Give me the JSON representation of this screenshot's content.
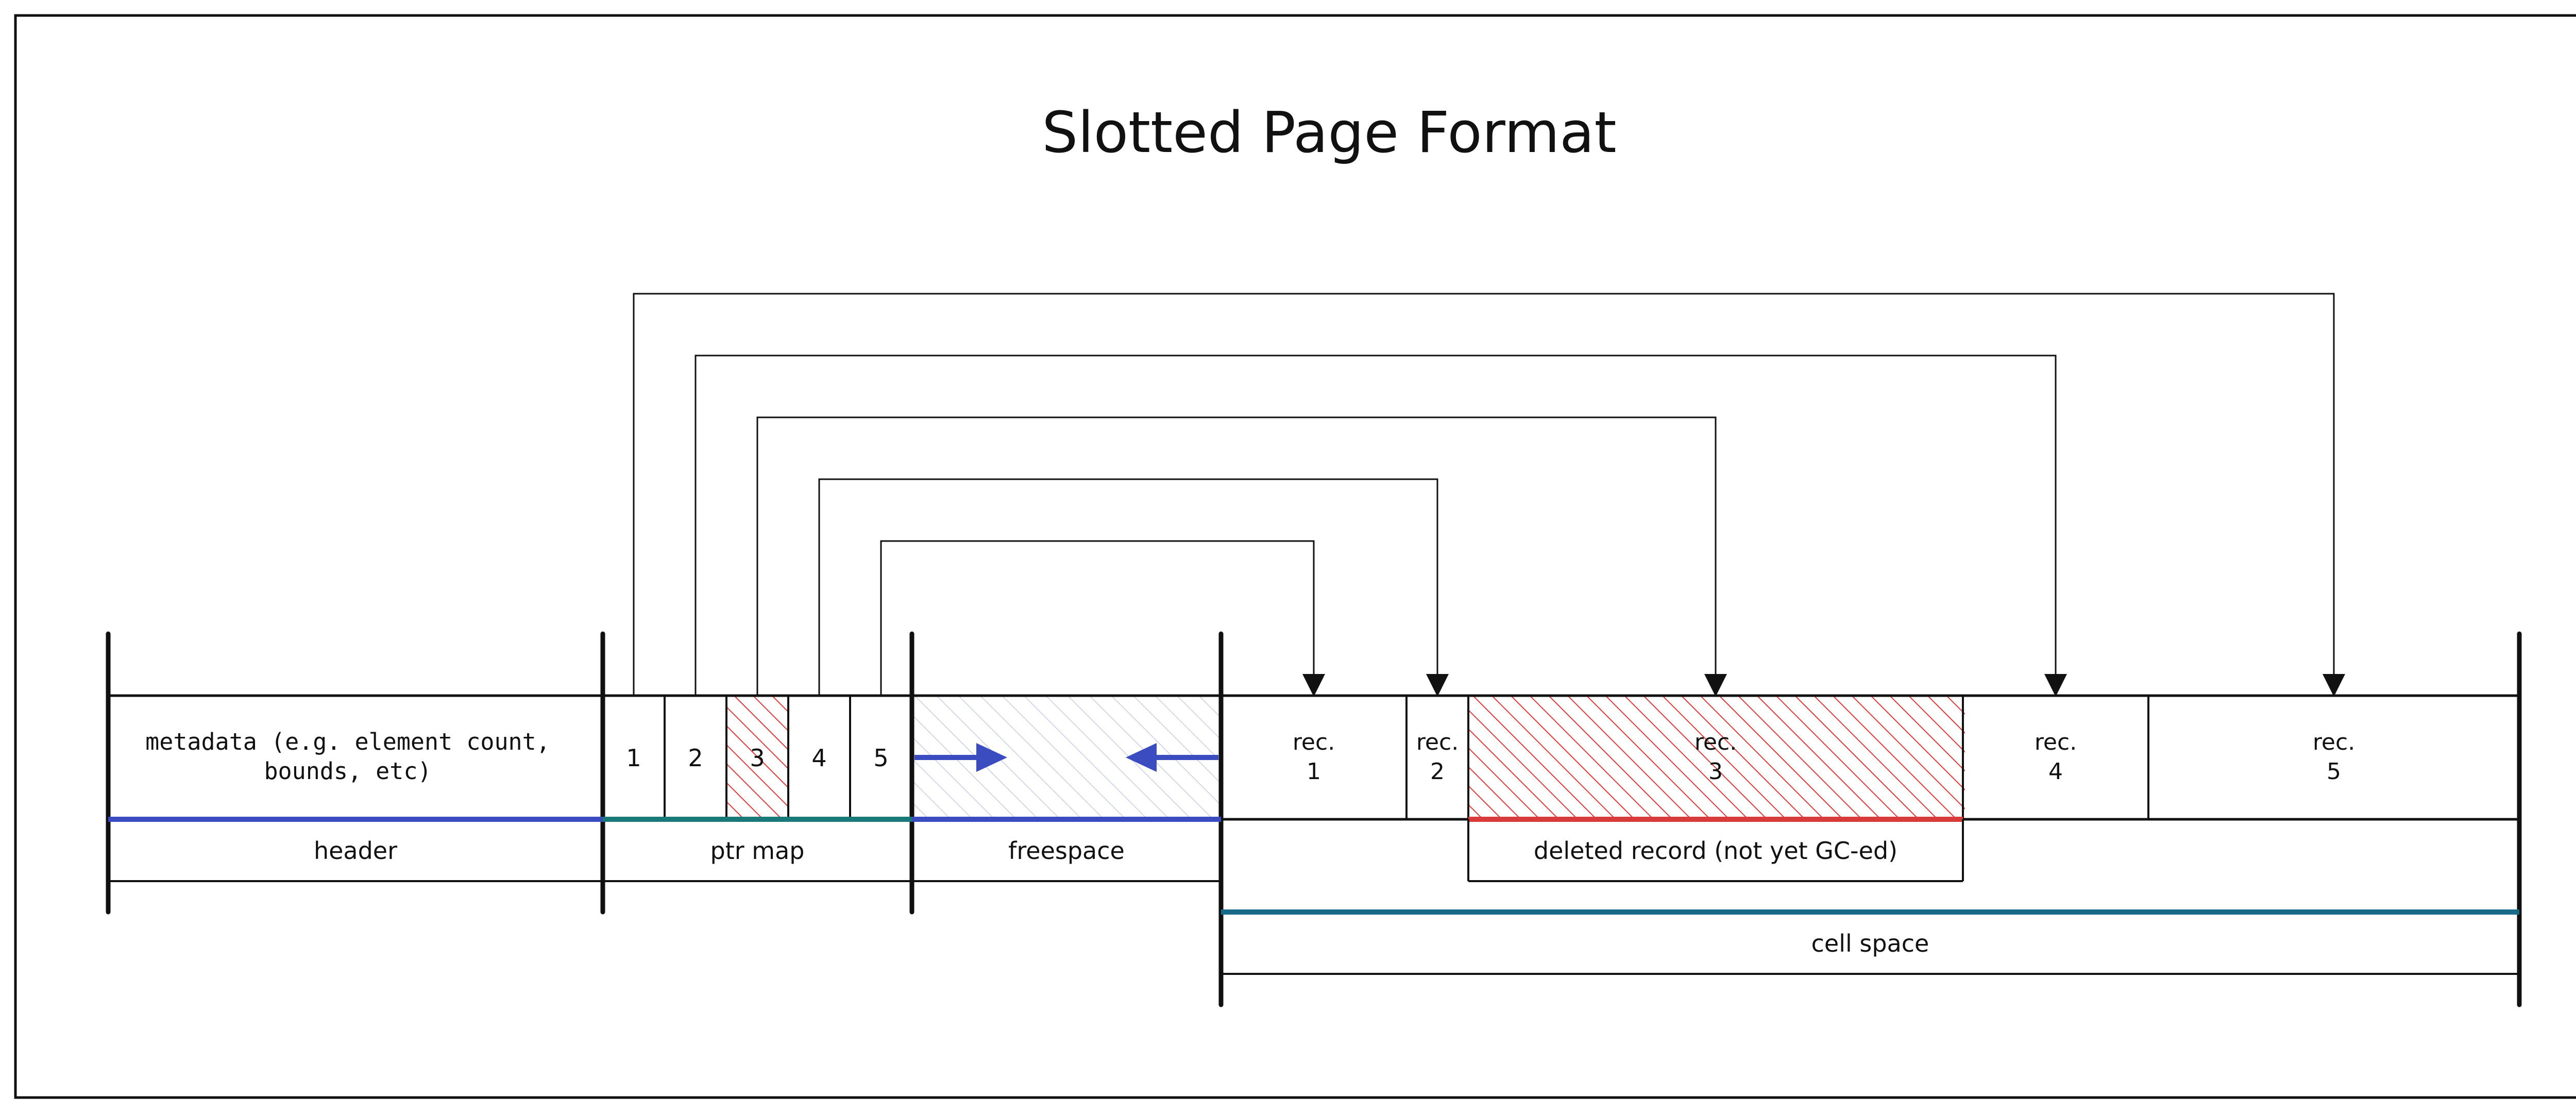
{
  "title": "Slotted Page Format",
  "header_text": {
    "line1": "metadata (e.g. element count,",
    "line2": "bounds, etc)"
  },
  "slots": [
    "1",
    "2",
    "3",
    "4",
    "5"
  ],
  "deleted_slot": "3",
  "records": [
    {
      "line1": "rec.",
      "line2": "1"
    },
    {
      "line1": "rec.",
      "line2": "2"
    },
    {
      "line1": "rec.",
      "line2": "3"
    },
    {
      "line1": "rec.",
      "line2": "4"
    },
    {
      "line1": "rec.",
      "line2": "5"
    }
  ],
  "labels": {
    "header": "header",
    "ptr_map": "ptr map",
    "freespace": "freespace",
    "deleted_record": "deleted record (not yet GC-ed)",
    "cell_space": "cell space"
  },
  "colors": {
    "line": "#111111",
    "header_underline": "#3b4cc0",
    "ptr_underline": "#1a7a7a",
    "freespace_underline": "#3b4cc0",
    "cell_underline": "#176b87",
    "deleted_underline": "#d93a3a",
    "deleted_hatch": "#e03c3c",
    "freespace_hatch": "#c9cde6",
    "freespace_arrow": "#3b4cc0"
  }
}
